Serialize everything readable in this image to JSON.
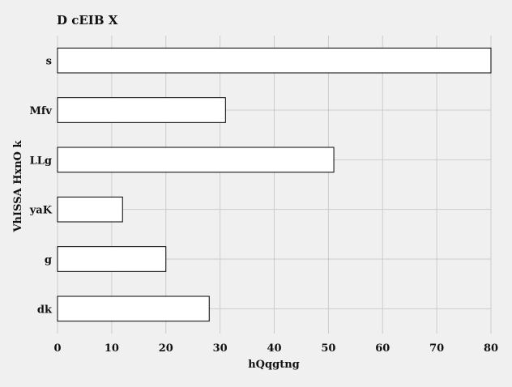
{
  "chart_data": {
    "type": "bar",
    "orientation": "horizontal",
    "title": "D  cEIB X",
    "xlabel": "hQqgtng",
    "ylabel": "VhISSA HxnO  k",
    "categories": [
      "s",
      "Mfv",
      "LLg",
      "yaK",
      "g",
      "dk"
    ],
    "values": [
      80,
      31,
      51,
      12,
      20,
      28
    ],
    "xlim": [
      0,
      80
    ],
    "xticks": [
      0,
      10,
      20,
      30,
      40,
      50,
      60,
      70,
      80
    ],
    "grid": true,
    "colors": {
      "background": "#f0f0f0",
      "bar_fill": "#ffffff",
      "bar_stroke": "#000000",
      "grid": "#cccccc"
    }
  }
}
